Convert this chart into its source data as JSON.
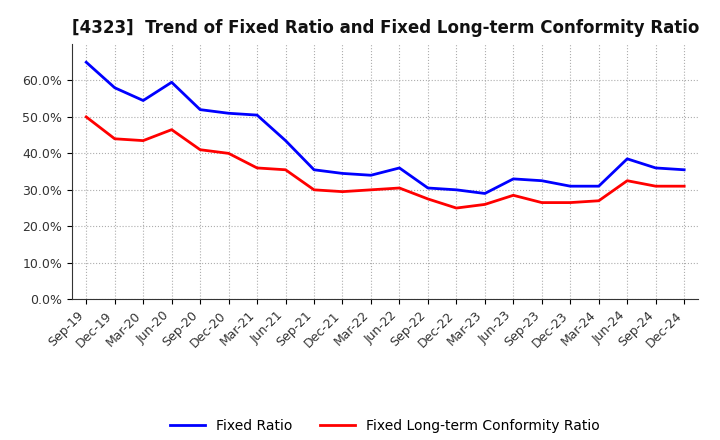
{
  "title": "[4323]  Trend of Fixed Ratio and Fixed Long-term Conformity Ratio",
  "x_labels": [
    "Sep-19",
    "Dec-19",
    "Mar-20",
    "Jun-20",
    "Sep-20",
    "Dec-20",
    "Mar-21",
    "Jun-21",
    "Sep-21",
    "Dec-21",
    "Mar-22",
    "Jun-22",
    "Sep-22",
    "Dec-22",
    "Mar-23",
    "Jun-23",
    "Sep-23",
    "Dec-23",
    "Mar-24",
    "Jun-24",
    "Sep-24",
    "Dec-24"
  ],
  "fixed_ratio": [
    65.0,
    58.0,
    54.5,
    59.5,
    52.0,
    51.0,
    50.5,
    43.5,
    35.5,
    34.5,
    34.0,
    36.0,
    30.5,
    30.0,
    29.0,
    33.0,
    32.5,
    31.0,
    31.0,
    38.5,
    36.0,
    35.5
  ],
  "fixed_longterm_ratio": [
    50.0,
    44.0,
    43.5,
    46.5,
    41.0,
    40.0,
    36.0,
    35.5,
    30.0,
    29.5,
    30.0,
    30.5,
    27.5,
    25.0,
    26.0,
    28.5,
    26.5,
    26.5,
    27.0,
    32.5,
    31.0,
    31.0
  ],
  "fixed_ratio_color": "#0000FF",
  "fixed_longterm_color": "#FF0000",
  "ylim": [
    0,
    70
  ],
  "ytick_values": [
    0,
    10,
    20,
    30,
    40,
    50,
    60
  ],
  "ytick_labels": [
    "0.0%",
    "10.0%",
    "20.0%",
    "30.0%",
    "40.0%",
    "50.0%",
    "60.0%"
  ],
  "background_color": "#ffffff",
  "plot_bg_color": "#ffffff",
  "grid_color": "#999999",
  "legend_fixed_ratio": "Fixed Ratio",
  "legend_fixed_longterm": "Fixed Long-term Conformity Ratio",
  "line_width": 2.0,
  "title_fontsize": 12,
  "axis_fontsize": 9,
  "legend_fontsize": 10
}
